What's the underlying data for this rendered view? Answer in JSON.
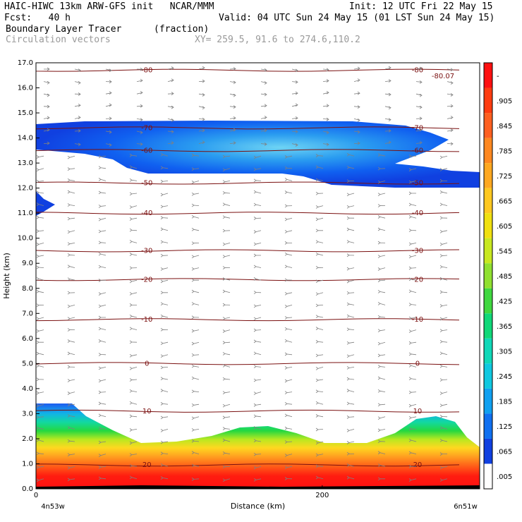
{
  "header": {
    "line1_left": "HAIC-HIWC 13km ARW-GFS init   NCAR/MMM",
    "line1_right": "Init: 12 UTC Fri 22 May 15",
    "line2_left": "Fcst:   40 h",
    "line2_right": "Valid: 04 UTC Sun 24 May 15 (01 LST Sun 24 May 15)",
    "line3_left": "Boundary Layer Tracer",
    "line3_mid": "(fraction)",
    "line4_left": "Circulation vectors",
    "line4_mid": "XY= 259.5, 91.6 to 274.6,110.2"
  },
  "chart_data": {
    "type": "heatmap",
    "xlabel": "Distance (km)",
    "ylabel": "Height (km)",
    "xlim": [
      0,
      310
    ],
    "ylim": [
      0,
      17
    ],
    "x_ticks": [
      {
        "v": 0,
        "label": "0"
      },
      {
        "v": 200,
        "label": "200"
      }
    ],
    "x_endpoint_labels": [
      "4n53w",
      "6n51w"
    ],
    "y_ticks": [
      "0.0",
      "1.0",
      "2.0",
      "3.0",
      "4.0",
      "5.0",
      "6.0",
      "7.0",
      "8.0",
      "9.0",
      "10.0",
      "11.0",
      "12.0",
      "13.0",
      "14.0",
      "15.0",
      "16.0",
      "17.0"
    ],
    "colorbar": {
      "labels": [
        "-",
        ".905",
        ".845",
        ".785",
        ".725",
        ".665",
        ".605",
        ".545",
        ".485",
        ".425",
        ".365",
        ".305",
        ".245",
        ".185",
        ".125",
        ".065",
        ".005"
      ],
      "colors": [
        "#ff1010",
        "#ff3c10",
        "#ff6020",
        "#ff8820",
        "#ffa820",
        "#ffc820",
        "#f0e010",
        "#c8e820",
        "#90e030",
        "#40d840",
        "#10d878",
        "#10d8b8",
        "#10c8e0",
        "#10a0f0",
        "#1070f0",
        "#1040e0",
        "#ffffff"
      ]
    },
    "temperature_contours": [
      {
        "label": "-80",
        "y": 16.7
      },
      {
        "label": "-70",
        "y": 14.4
      },
      {
        "label": "-60",
        "y": 13.5
      },
      {
        "label": "-50",
        "y": 12.2
      },
      {
        "label": "-40",
        "y": 11.0
      },
      {
        "label": "-30",
        "y": 9.5
      },
      {
        "label": "-20",
        "y": 8.35
      },
      {
        "label": "-10",
        "y": 6.75
      },
      {
        "label": "0",
        "y": 5.0
      },
      {
        "label": "10",
        "y": 3.1
      },
      {
        "label": "20",
        "y": 0.95
      }
    ],
    "extra_labels": [
      "-80.07"
    ]
  }
}
